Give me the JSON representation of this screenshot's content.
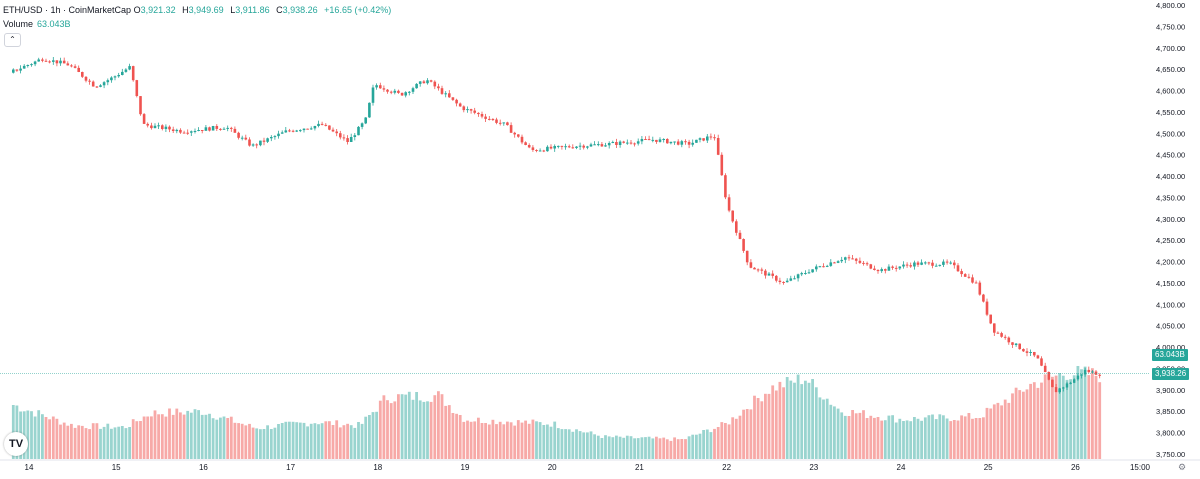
{
  "legend": {
    "symbol": "ETH/USD · 1h · CoinMarketCap",
    "open_key": "O",
    "open": "3,921.32",
    "high_key": "H",
    "high": "3,949.69",
    "low_key": "L",
    "low": "3,911.86",
    "close_key": "C",
    "close": "3,938.26",
    "change": "+16.65 (+0.42%)"
  },
  "volume": {
    "label": "Volume",
    "value": "63.043B"
  },
  "collapse_icon": "chevron-up-icon",
  "logo_text": "TV",
  "price_tag": "3,938.26",
  "volume_tag": "63.043B",
  "colors": {
    "up": "#26a69a",
    "down": "#ef5350",
    "vol_up": "#99d4cf",
    "vol_down": "#f7a9a7"
  },
  "chart_data": {
    "type": "candlestick",
    "x_ticks": [
      "14",
      "15",
      "16",
      "17",
      "18",
      "19",
      "20",
      "21",
      "22",
      "23",
      "24",
      "25",
      "26",
      "15:00"
    ],
    "y_ticks": [
      "4,800.00",
      "4,750.00",
      "4,700.00",
      "4,650.00",
      "4,600.00",
      "4,550.00",
      "4,500.00",
      "4,450.00",
      "4,400.00",
      "4,350.00",
      "4,300.00",
      "4,250.00",
      "4,200.00",
      "4,150.00",
      "4,100.00",
      "4,050.00",
      "4,000.00",
      "3,950.00",
      "3,900.00",
      "3,850.00",
      "3,800.00",
      "3,750.00"
    ],
    "ylim": [
      3750,
      4800
    ],
    "price_anchors": [
      {
        "day": 13.8,
        "price": 4640
      },
      {
        "day": 14.2,
        "price": 4675
      },
      {
        "day": 14.5,
        "price": 4660
      },
      {
        "day": 14.8,
        "price": 4610
      },
      {
        "day": 15.0,
        "price": 4630
      },
      {
        "day": 15.2,
        "price": 4655
      },
      {
        "day": 15.35,
        "price": 4520
      },
      {
        "day": 15.8,
        "price": 4505
      },
      {
        "day": 16.3,
        "price": 4515
      },
      {
        "day": 16.6,
        "price": 4470
      },
      {
        "day": 17.0,
        "price": 4505
      },
      {
        "day": 17.4,
        "price": 4520
      },
      {
        "day": 17.7,
        "price": 4480
      },
      {
        "day": 17.9,
        "price": 4530
      },
      {
        "day": 18.0,
        "price": 4615
      },
      {
        "day": 18.3,
        "price": 4590
      },
      {
        "day": 18.6,
        "price": 4625
      },
      {
        "day": 19.0,
        "price": 4560
      },
      {
        "day": 19.5,
        "price": 4520
      },
      {
        "day": 19.8,
        "price": 4460
      },
      {
        "day": 20.3,
        "price": 4470
      },
      {
        "day": 20.7,
        "price": 4475
      },
      {
        "day": 21.2,
        "price": 4485
      },
      {
        "day": 21.6,
        "price": 4475
      },
      {
        "day": 21.9,
        "price": 4495
      },
      {
        "day": 22.05,
        "price": 4330
      },
      {
        "day": 22.3,
        "price": 4190
      },
      {
        "day": 22.7,
        "price": 4150
      },
      {
        "day": 23.0,
        "price": 4180
      },
      {
        "day": 23.4,
        "price": 4210
      },
      {
        "day": 23.8,
        "price": 4180
      },
      {
        "day": 24.2,
        "price": 4195
      },
      {
        "day": 24.6,
        "price": 4195
      },
      {
        "day": 24.9,
        "price": 4150
      },
      {
        "day": 25.1,
        "price": 4040
      },
      {
        "day": 25.35,
        "price": 4005
      },
      {
        "day": 25.6,
        "price": 3975
      },
      {
        "day": 25.8,
        "price": 3895
      },
      {
        "day": 26.0,
        "price": 3920
      },
      {
        "day": 26.15,
        "price": 3945
      },
      {
        "day": 26.3,
        "price": 3938
      }
    ],
    "volume_anchors": [
      {
        "day": 13.8,
        "level": 0.62
      },
      {
        "day": 14.5,
        "level": 0.38
      },
      {
        "day": 15.1,
        "level": 0.36
      },
      {
        "day": 15.4,
        "level": 0.52
      },
      {
        "day": 16.0,
        "level": 0.54
      },
      {
        "day": 16.6,
        "level": 0.35
      },
      {
        "day": 17.3,
        "level": 0.42
      },
      {
        "day": 17.8,
        "level": 0.38
      },
      {
        "day": 18.1,
        "level": 0.7
      },
      {
        "day": 18.7,
        "level": 0.72
      },
      {
        "day": 19.0,
        "level": 0.45
      },
      {
        "day": 20.0,
        "level": 0.4
      },
      {
        "day": 20.6,
        "level": 0.25
      },
      {
        "day": 21.5,
        "level": 0.22
      },
      {
        "day": 22.0,
        "level": 0.4
      },
      {
        "day": 22.5,
        "level": 0.8
      },
      {
        "day": 22.9,
        "level": 0.92
      },
      {
        "day": 23.3,
        "level": 0.55
      },
      {
        "day": 24.0,
        "level": 0.45
      },
      {
        "day": 24.9,
        "level": 0.48
      },
      {
        "day": 25.5,
        "level": 0.85
      },
      {
        "day": 25.9,
        "level": 0.98
      },
      {
        "day": 26.3,
        "level": 0.95
      }
    ]
  }
}
